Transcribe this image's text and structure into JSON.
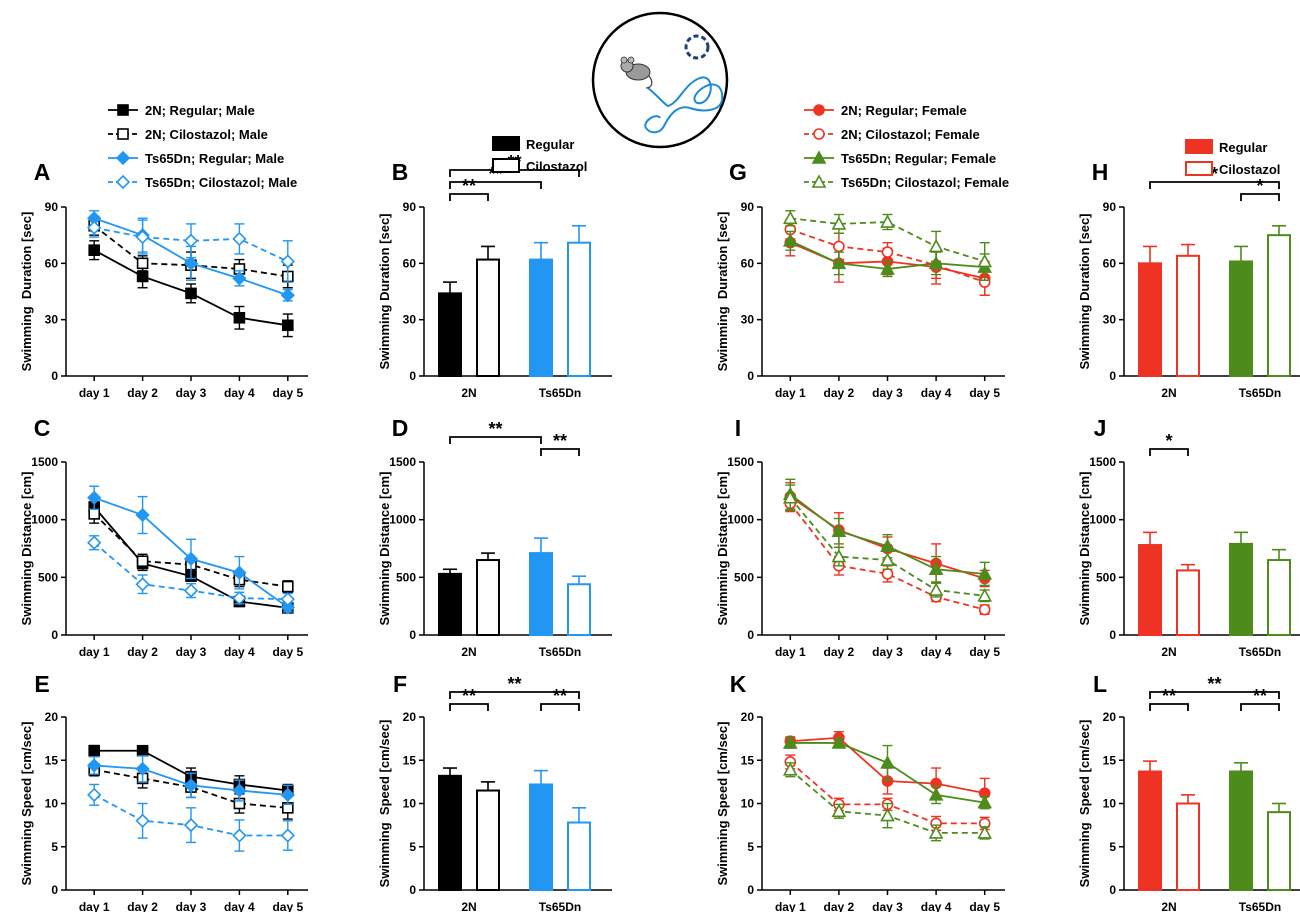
{
  "figure": {
    "legend_male": [
      {
        "label": "2N; Regular; Male",
        "color": "#000000",
        "marker": "square",
        "filled": true,
        "dashed": false
      },
      {
        "label": "2N; Cilostazol; Male",
        "color": "#000000",
        "marker": "square",
        "filled": false,
        "dashed": true
      },
      {
        "label": "Ts65Dn; Regular; Male",
        "color": "#2196f3",
        "marker": "diamond",
        "filled": true,
        "dashed": false
      },
      {
        "label": "Ts65Dn; Cilostazol; Male",
        "color": "#2196f3",
        "marker": "diamond",
        "filled": false,
        "dashed": true
      }
    ],
    "legend_female": [
      {
        "label": "2N; Regular; Female",
        "color": "#ee3322",
        "marker": "circle",
        "filled": true,
        "dashed": false
      },
      {
        "label": "2N; Cilostazol; Female",
        "color": "#ee3322",
        "marker": "circle",
        "filled": false,
        "dashed": true
      },
      {
        "label": "Ts65Dn; Regular; Female",
        "color": "#4d8c1a",
        "marker": "triangle",
        "filled": true,
        "dashed": false
      },
      {
        "label": "Ts65Dn; Cilostazol; Female",
        "color": "#4d8c1a",
        "marker": "triangle",
        "filled": false,
        "dashed": true
      }
    ],
    "bar_legend_male": [
      {
        "label": "Regular",
        "color": "#000000",
        "filled": true
      },
      {
        "label": "Cilostazol",
        "color": "#000000",
        "filled": false
      }
    ],
    "bar_legend_female": [
      {
        "label": "Regular",
        "color": "#ee3322",
        "filled": true
      },
      {
        "label": "Cilostazol",
        "color": "#ee3322",
        "filled": false
      }
    ]
  },
  "chart_data": [
    {
      "panel": "A",
      "type": "line",
      "ylabel": "Swimming  Duration [sec]",
      "ylim": [
        0,
        90
      ],
      "yticks": [
        0,
        30,
        60,
        90
      ],
      "categories": [
        "day 1",
        "day 2",
        "day 3",
        "day 4",
        "day 5"
      ],
      "series": [
        {
          "name": "2N; Regular; Male",
          "values": [
            67,
            53,
            44,
            31,
            27
          ],
          "errors": [
            5,
            6,
            5,
            6,
            6
          ]
        },
        {
          "name": "2N; Cilostazol; Male",
          "values": [
            80,
            60,
            59,
            57,
            53
          ],
          "errors": [
            5,
            4,
            7,
            5,
            6
          ]
        },
        {
          "name": "Ts65Dn; Regular; Male",
          "values": [
            84,
            75,
            60,
            52,
            43
          ],
          "errors": [
            4,
            9,
            9,
            4,
            3
          ]
        },
        {
          "name": "Ts65Dn; Cilostazol; Male",
          "values": [
            79,
            74,
            72,
            73,
            61
          ],
          "errors": [
            5,
            9,
            9,
            8,
            11
          ]
        }
      ]
    },
    {
      "panel": "B",
      "type": "bar",
      "ylabel": "Swimming Duration [sec]",
      "ylim": [
        0,
        90
      ],
      "yticks": [
        0,
        30,
        60,
        90
      ],
      "groups": [
        "2N",
        "Ts65Dn"
      ],
      "series_names": [
        "Regular",
        "Cilostazol"
      ],
      "values": [
        [
          44,
          62
        ],
        [
          62,
          71
        ]
      ],
      "errors": [
        [
          6,
          7
        ],
        [
          9,
          9
        ]
      ],
      "significance": [
        {
          "from": [
            0,
            0
          ],
          "to": [
            0,
            1
          ],
          "label": "**"
        },
        {
          "from": [
            0,
            0
          ],
          "to": [
            1,
            0
          ],
          "label": "**"
        },
        {
          "from": [
            0,
            0
          ],
          "to": [
            1,
            1
          ],
          "label": "**"
        }
      ]
    },
    {
      "panel": "C",
      "type": "line",
      "ylabel": "Swimming Distance [cm]",
      "ylim": [
        0,
        1500
      ],
      "yticks": [
        0,
        500,
        1000,
        1500
      ],
      "categories": [
        "day 1",
        "day 2",
        "day 3",
        "day 4",
        "day 5"
      ],
      "series": [
        {
          "name": "2N; Regular; Male",
          "values": [
            1110,
            620,
            510,
            290,
            235
          ],
          "errors": [
            80,
            60,
            40,
            40,
            30
          ]
        },
        {
          "name": "2N; Cilostazol; Male",
          "values": [
            1050,
            640,
            610,
            480,
            420
          ],
          "errors": [
            80,
            60,
            60,
            60,
            50
          ]
        },
        {
          "name": "Ts65Dn; Regular; Male",
          "values": [
            1190,
            1040,
            660,
            540,
            240
          ],
          "errors": [
            100,
            160,
            170,
            140,
            40
          ]
        },
        {
          "name": "Ts65Dn; Cilostazol; Male",
          "values": [
            800,
            440,
            385,
            320,
            310
          ],
          "errors": [
            60,
            80,
            60,
            50,
            50
          ]
        }
      ]
    },
    {
      "panel": "D",
      "type": "bar",
      "ylabel": "Swimming Distance [cm]",
      "ylim": [
        0,
        1500
      ],
      "yticks": [
        0,
        500,
        1000,
        1500
      ],
      "groups": [
        "2N",
        "Ts65Dn"
      ],
      "series_names": [
        "Regular",
        "Cilostazol"
      ],
      "values": [
        [
          530,
          650
        ],
        [
          710,
          440
        ]
      ],
      "errors": [
        [
          40,
          60
        ],
        [
          130,
          70
        ]
      ],
      "significance": [
        {
          "from": [
            0,
            0
          ],
          "to": [
            1,
            0
          ],
          "label": "**"
        },
        {
          "from": [
            1,
            0
          ],
          "to": [
            1,
            1
          ],
          "label": "**"
        }
      ]
    },
    {
      "panel": "E",
      "type": "line",
      "ylabel": "Swimming Speed [cm/sec]",
      "ylim": [
        0,
        20
      ],
      "yticks": [
        0,
        5,
        10,
        15,
        20
      ],
      "categories": [
        "day 1",
        "day 2",
        "day 3",
        "day 4",
        "day 5"
      ],
      "series": [
        {
          "name": "2N; Regular; Male",
          "values": [
            16.1,
            16.1,
            13.1,
            12.2,
            11.5
          ],
          "errors": [
            0.6,
            0.5,
            1.0,
            1.0,
            0.7
          ]
        },
        {
          "name": "2N; Cilostazol; Male",
          "values": [
            13.9,
            12.9,
            11.9,
            10.0,
            9.5
          ],
          "errors": [
            0.7,
            1.1,
            1.2,
            1.1,
            1.3
          ]
        },
        {
          "name": "Ts65Dn; Regular; Male",
          "values": [
            14.4,
            14.0,
            12.1,
            11.5,
            11.0
          ],
          "errors": [
            1.0,
            1.5,
            1.4,
            1.2,
            1.1
          ]
        },
        {
          "name": "Ts65Dn; Cilostazol; Male",
          "values": [
            11.0,
            8.0,
            7.5,
            6.3,
            6.3
          ],
          "errors": [
            1.2,
            2.0,
            2.0,
            1.8,
            1.7
          ]
        }
      ]
    },
    {
      "panel": "F",
      "type": "bar",
      "ylabel": "Swimming  Speed [cm/sec]",
      "ylim": [
        0,
        20
      ],
      "yticks": [
        0,
        5,
        10,
        15,
        20
      ],
      "groups": [
        "2N",
        "Ts65Dn"
      ],
      "series_names": [
        "Regular",
        "Cilostazol"
      ],
      "values": [
        [
          13.2,
          11.5
        ],
        [
          12.2,
          7.8
        ]
      ],
      "errors": [
        [
          0.9,
          1.0
        ],
        [
          1.6,
          1.7
        ]
      ],
      "significance": [
        {
          "from": [
            0,
            0
          ],
          "to": [
            0,
            1
          ],
          "label": "**"
        },
        {
          "from": [
            1,
            0
          ],
          "to": [
            1,
            1
          ],
          "label": "**"
        },
        {
          "from": [
            0,
            0
          ],
          "to": [
            1,
            1
          ],
          "label": "**"
        }
      ]
    },
    {
      "panel": "G",
      "type": "line",
      "ylabel": "Swimming  Duration [sec]",
      "ylim": [
        0,
        90
      ],
      "yticks": [
        0,
        30,
        60,
        90
      ],
      "categories": [
        "day 1",
        "day 2",
        "day 3",
        "day 4",
        "day 5"
      ],
      "series": [
        {
          "name": "2N; Regular; Female",
          "values": [
            71,
            60,
            61,
            58,
            52
          ],
          "errors": [
            7,
            10,
            7,
            9,
            9
          ]
        },
        {
          "name": "2N; Cilostazol; Female",
          "values": [
            78,
            69,
            66,
            59,
            50
          ],
          "errors": [
            5,
            7,
            5,
            7,
            7
          ]
        },
        {
          "name": "Ts65Dn; Regular; Female",
          "values": [
            72,
            60,
            57,
            60,
            58
          ],
          "errors": [
            5,
            6,
            4,
            6,
            7
          ]
        },
        {
          "name": "Ts65Dn; Cilostazol; Female",
          "values": [
            84,
            81,
            82,
            69,
            61
          ],
          "errors": [
            4,
            5,
            4,
            8,
            10
          ]
        }
      ]
    },
    {
      "panel": "H",
      "type": "bar",
      "ylabel": "Swimming Duration [sec]",
      "ylim": [
        0,
        90
      ],
      "yticks": [
        0,
        30,
        60,
        90
      ],
      "groups": [
        "2N",
        "Ts65Dn"
      ],
      "series_names": [
        "Regular",
        "Cilostazol"
      ],
      "values": [
        [
          60,
          64
        ],
        [
          61,
          75
        ]
      ],
      "errors": [
        [
          9,
          6
        ],
        [
          8,
          5
        ]
      ],
      "significance": [
        {
          "from": [
            0,
            0
          ],
          "to": [
            1,
            1
          ],
          "label": "*"
        },
        {
          "from": [
            1,
            0
          ],
          "to": [
            1,
            1
          ],
          "label": "*"
        }
      ]
    },
    {
      "panel": "I",
      "type": "line",
      "ylabel": "Swimming Distance [cm]",
      "ylim": [
        0,
        1500
      ],
      "yticks": [
        0,
        500,
        1000,
        1500
      ],
      "categories": [
        "day 1",
        "day 2",
        "day 3",
        "day 4",
        "day 5"
      ],
      "series": [
        {
          "name": "2N; Regular; Female",
          "values": [
            1200,
            910,
            750,
            620,
            490
          ],
          "errors": [
            120,
            150,
            100,
            170,
            70
          ]
        },
        {
          "name": "2N; Cilostazol; Female",
          "values": [
            1140,
            600,
            530,
            330,
            220
          ],
          "errors": [
            70,
            80,
            70,
            40,
            40
          ]
        },
        {
          "name": "Ts65Dn; Regular; Female",
          "values": [
            1220,
            900,
            770,
            570,
            530
          ],
          "errors": [
            130,
            110,
            100,
            110,
            100
          ]
        },
        {
          "name": "Ts65Dn; Cilostazol; Female",
          "values": [
            1190,
            680,
            650,
            390,
            340
          ],
          "errors": [
            110,
            80,
            80,
            60,
            50
          ]
        }
      ]
    },
    {
      "panel": "J",
      "type": "bar",
      "ylabel": "Swimming Distance [cm]",
      "ylim": [
        0,
        1500
      ],
      "yticks": [
        0,
        500,
        1000,
        1500
      ],
      "groups": [
        "2N",
        "Ts65Dn"
      ],
      "series_names": [
        "Regular",
        "Cilostazol"
      ],
      "values": [
        [
          780,
          560
        ],
        [
          790,
          650
        ]
      ],
      "errors": [
        [
          110,
          50
        ],
        [
          100,
          90
        ]
      ],
      "significance": [
        {
          "from": [
            0,
            0
          ],
          "to": [
            0,
            1
          ],
          "label": "*"
        }
      ]
    },
    {
      "panel": "K",
      "type": "line",
      "ylabel": "Swimming Speed [cm/sec]",
      "ylim": [
        0,
        20
      ],
      "yticks": [
        0,
        5,
        10,
        15,
        20
      ],
      "categories": [
        "day 1",
        "day 2",
        "day 3",
        "day 4",
        "day 5"
      ],
      "series": [
        {
          "name": "2N; Regular; Female",
          "values": [
            17.2,
            17.6,
            12.6,
            12.3,
            11.2
          ],
          "errors": [
            0.5,
            0.7,
            1.5,
            1.8,
            1.7
          ]
        },
        {
          "name": "2N; Cilostazol; Female",
          "values": [
            14.8,
            9.9,
            9.9,
            7.7,
            7.7
          ],
          "errors": [
            0.8,
            0.7,
            0.7,
            0.8,
            0.7
          ]
        },
        {
          "name": "Ts65Dn; Regular; Female",
          "values": [
            17.0,
            17.0,
            14.7,
            11.0,
            10.1
          ],
          "errors": [
            0.6,
            0.5,
            2.0,
            1.0,
            0.7
          ]
        },
        {
          "name": "Ts65Dn; Cilostazol; Female",
          "values": [
            13.9,
            9.1,
            8.6,
            6.6,
            6.6
          ],
          "errors": [
            0.8,
            0.8,
            1.4,
            0.9,
            0.7
          ]
        }
      ]
    },
    {
      "panel": "L",
      "type": "bar",
      "ylabel": "Swimming  Speed [cm/sec]",
      "ylim": [
        0,
        20
      ],
      "yticks": [
        0,
        5,
        10,
        15,
        20
      ],
      "groups": [
        "2N",
        "Ts65Dn"
      ],
      "series_names": [
        "Regular",
        "Cilostazol"
      ],
      "values": [
        [
          13.7,
          10.0
        ],
        [
          13.7,
          9.0
        ]
      ],
      "errors": [
        [
          1.2,
          1.0
        ],
        [
          1.0,
          1.0
        ]
      ],
      "significance": [
        {
          "from": [
            0,
            0
          ],
          "to": [
            0,
            1
          ],
          "label": "**"
        },
        {
          "from": [
            1,
            0
          ],
          "to": [
            1,
            1
          ],
          "label": "**"
        },
        {
          "from": [
            0,
            0
          ],
          "to": [
            1,
            1
          ],
          "label": "**"
        }
      ]
    }
  ]
}
